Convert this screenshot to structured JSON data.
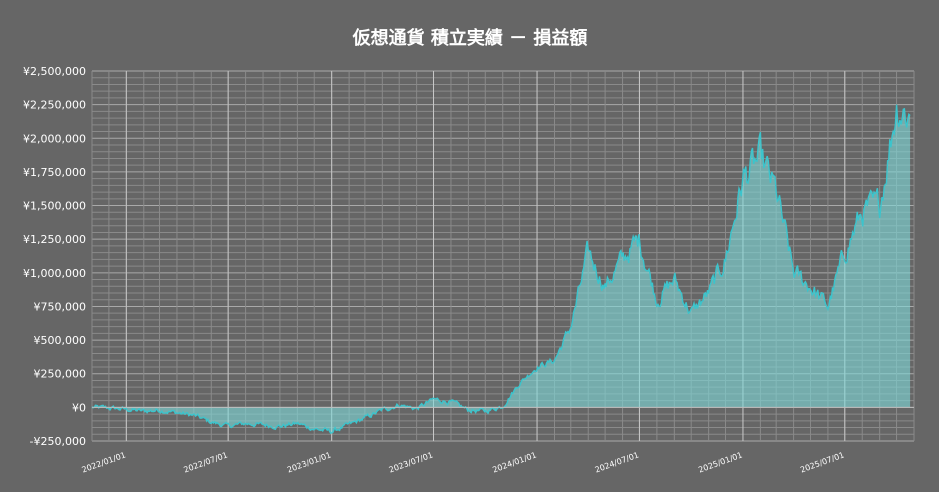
{
  "chart_data": {
    "type": "area",
    "title": "仮想通貨 積立実績 － 損益額",
    "ylim": [
      -250000,
      2500000
    ],
    "y_tick_values": [
      -250000,
      0,
      250000,
      500000,
      750000,
      1000000,
      1250000,
      1500000,
      1750000,
      2000000,
      2250000,
      2500000
    ],
    "y_tick_labels": [
      "-¥250,000",
      "¥0",
      "¥250,000",
      "¥500,000",
      "¥750,000",
      "¥1,000,000",
      "¥1,250,000",
      "¥1,500,000",
      "¥1,750,000",
      "¥2,000,000",
      "¥2,250,000",
      "¥2,500,000"
    ],
    "x_range": [
      "2021-11-01",
      "2025-11-01"
    ],
    "x_tick_dates": [
      "2022-01-01",
      "2022-07-01",
      "2023-01-01",
      "2023-07-01",
      "2024-01-01",
      "2024-07-01",
      "2025-01-01",
      "2025-07-01"
    ],
    "x_tick_labels": [
      "2022/01/01",
      "2022/07/01",
      "2023/01/01",
      "2023/07/01",
      "2024/01/01",
      "2024/07/01",
      "2025/01/01",
      "2025/07/01"
    ],
    "grid": true,
    "colors": {
      "background": "#666666",
      "line": "#3cc4cc",
      "fill": "#7fdada"
    },
    "x": [
      "2021-11-01",
      "2021-12-01",
      "2022-01-01",
      "2022-02-01",
      "2022-03-01",
      "2022-04-01",
      "2022-05-01",
      "2022-06-01",
      "2022-07-01",
      "2022-08-01",
      "2022-09-01",
      "2022-10-01",
      "2022-11-01",
      "2022-12-01",
      "2023-01-01",
      "2023-02-01",
      "2023-03-01",
      "2023-04-01",
      "2023-05-01",
      "2023-06-01",
      "2023-07-01",
      "2023-08-01",
      "2023-09-01",
      "2023-10-01",
      "2023-11-01",
      "2023-12-01",
      "2024-01-01",
      "2024-02-01",
      "2024-03-01",
      "2024-04-01",
      "2024-05-01",
      "2024-06-01",
      "2024-07-01",
      "2024-08-01",
      "2024-09-01",
      "2024-10-01",
      "2024-11-01",
      "2024-12-01",
      "2025-01-01",
      "2025-02-01",
      "2025-03-01",
      "2025-04-01",
      "2025-05-01",
      "2025-06-01",
      "2025-07-01",
      "2025-08-01",
      "2025-09-01",
      "2025-10-01",
      "2025-11-01"
    ],
    "series": [
      {
        "values": [
          0,
          -5000,
          -15000,
          -30000,
          -20000,
          -40000,
          -60000,
          -110000,
          -140000,
          -120000,
          -130000,
          -140000,
          -120000,
          -160000,
          -180000,
          -130000,
          -80000,
          -20000,
          20000,
          -10000,
          60000,
          40000,
          -20000,
          -30000,
          10000,
          180000,
          300000,
          350000,
          600000,
          1150000,
          900000,
          1100000,
          1250000,
          800000,
          950000,
          700000,
          850000,
          1100000,
          1700000,
          1850000,
          1600000,
          1000000,
          900000,
          750000,
          1150000,
          1450000,
          1500000,
          2250000,
          2150000
        ]
      }
    ]
  }
}
